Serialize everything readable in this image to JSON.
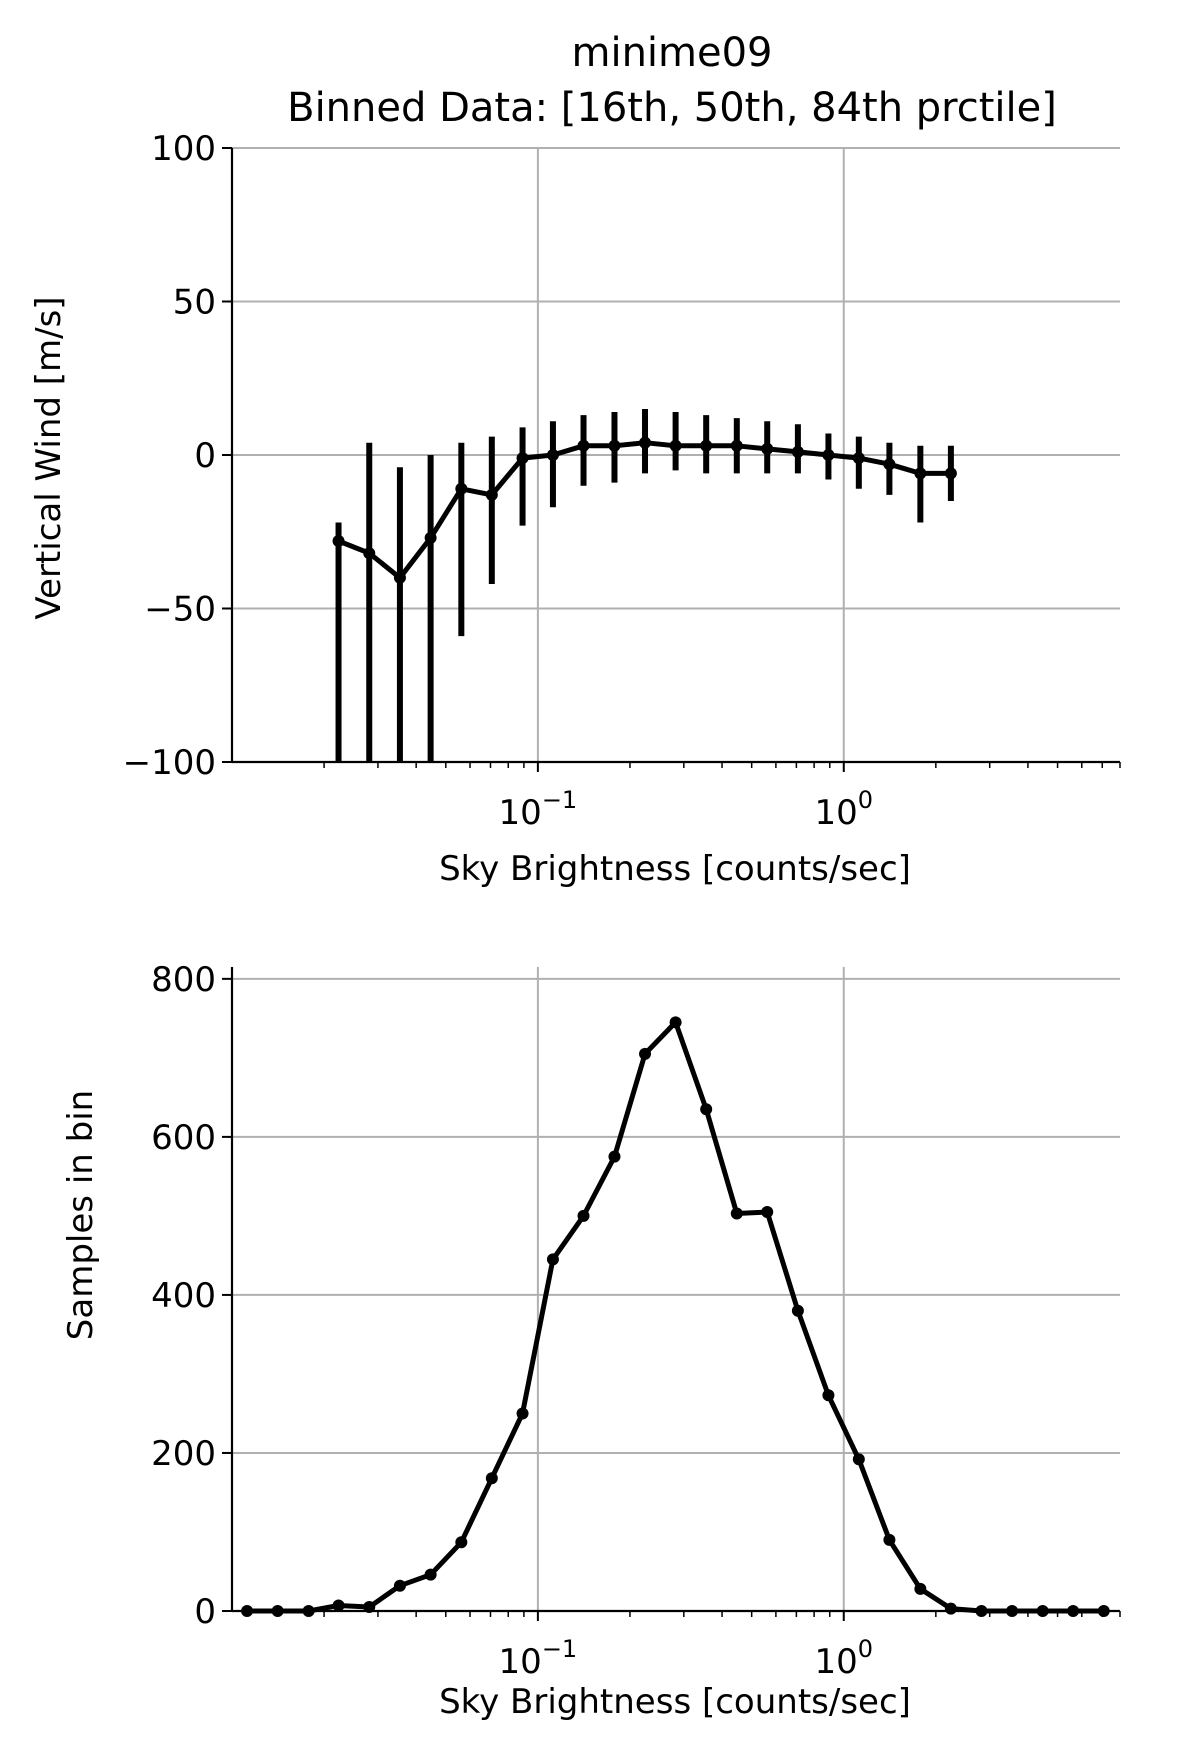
{
  "chart_data": [
    {
      "type": "line",
      "title": "minime09",
      "subtitle": "Binned Data: [16th, 50th, 84th prctile]",
      "xlabel": "Sky Brightness [counts/sec]",
      "ylabel": "Vertical Wind [m/s]",
      "xscale": "log",
      "xlim": [
        0.01,
        8.0
      ],
      "ylim": [
        -100,
        100
      ],
      "grid": true,
      "x_tick_labels": [
        {
          "value": 0.1,
          "base": "10",
          "exp": "−1"
        },
        {
          "value": 1.0,
          "base": "10",
          "exp": "0"
        }
      ],
      "y_ticks": [
        -100,
        -50,
        0,
        50,
        100
      ],
      "y_tick_labels": [
        "−100",
        "−50",
        "0",
        "50",
        "100"
      ],
      "series": [
        {
          "x": [
            0.0223,
            0.0281,
            0.0354,
            0.0446,
            0.0562,
            0.0707,
            0.0891,
            0.112,
            0.141,
            0.178,
            0.224,
            0.282,
            0.355,
            0.447,
            0.562,
            0.708,
            0.891,
            1.12,
            1.41,
            1.78,
            2.24
          ],
          "median": [
            -28,
            -32,
            -40,
            -27,
            -11,
            -13,
            -1,
            0,
            3,
            3,
            4,
            3,
            3,
            3,
            2,
            1,
            0,
            -1,
            -3,
            -6,
            -6
          ],
          "p16": [
            -100,
            -100,
            -100,
            -100,
            -59,
            -42,
            -23,
            -17,
            -10,
            -9,
            -6,
            -5,
            -6,
            -6,
            -6,
            -6,
            -8,
            -11,
            -13,
            -22,
            -15
          ],
          "p84": [
            -22,
            4,
            -4,
            0,
            4,
            6,
            9,
            11,
            13,
            14,
            15,
            14,
            13,
            12,
            11,
            10,
            7,
            6,
            4,
            3,
            3
          ],
          "color": "#000000"
        }
      ]
    },
    {
      "type": "line",
      "title": "",
      "xlabel": "Sky Brightness [counts/sec]",
      "ylabel": "Samples in bin",
      "xscale": "log",
      "xlim": [
        0.01,
        8.0
      ],
      "ylim": [
        0,
        815
      ],
      "grid": true,
      "x_tick_labels": [
        {
          "value": 0.1,
          "base": "10",
          "exp": "−1"
        },
        {
          "value": 1.0,
          "base": "10",
          "exp": "0"
        }
      ],
      "y_ticks": [
        0,
        200,
        400,
        600,
        800
      ],
      "y_tick_labels": [
        "0",
        "200",
        "400",
        "600",
        "800"
      ],
      "series": [
        {
          "x": [
            0.0112,
            0.0141,
            0.0178,
            0.0223,
            0.0281,
            0.0354,
            0.0446,
            0.0562,
            0.0707,
            0.0891,
            0.112,
            0.141,
            0.178,
            0.224,
            0.282,
            0.355,
            0.447,
            0.562,
            0.708,
            0.891,
            1.12,
            1.41,
            1.78,
            2.24,
            2.82,
            3.55,
            4.47,
            5.62,
            7.08
          ],
          "values": [
            0,
            0,
            0,
            7,
            5,
            32,
            46,
            87,
            168,
            250,
            445,
            500,
            575,
            705,
            745,
            635,
            503,
            505,
            380,
            273,
            192,
            90,
            28,
            3,
            0,
            0,
            0,
            0,
            0
          ],
          "color": "#000000"
        }
      ]
    }
  ]
}
